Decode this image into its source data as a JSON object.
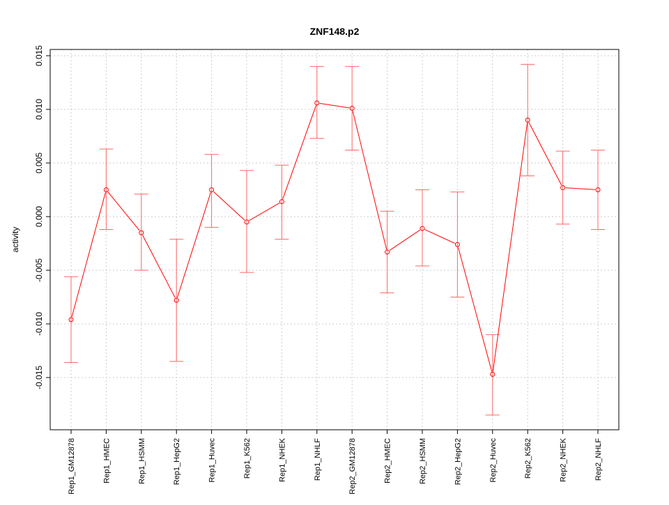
{
  "chart_data": {
    "type": "line",
    "title": "ZNF148.p2",
    "xlabel": "",
    "ylabel": "activity",
    "ylim": [
      -0.0199,
      0.0155
    ],
    "yticks": [
      -0.015,
      -0.01,
      -0.005,
      0.0,
      0.005,
      0.01,
      0.015
    ],
    "ytick_labels": [
      "-0.015",
      "-0.010",
      "-0.005",
      "0.000",
      "0.005",
      "0.010",
      "0.015"
    ],
    "grid": true,
    "legend": "none",
    "colors": {
      "series": "#ff0000",
      "errorbar": "#ff6666",
      "grid": "#cccccc",
      "axis": "#000000"
    },
    "categories": [
      "Rep1_GM12878",
      "Rep1_HMEC",
      "Rep1_HSMM",
      "Rep1_HepG2",
      "Rep1_Huvec",
      "Rep1_K562",
      "Rep1_NHEK",
      "Rep1_NHLF",
      "Rep2_GM12878",
      "Rep2_HMEC",
      "Rep2_HSMM",
      "Rep2_HepG2",
      "Rep2_Huvec",
      "Rep2_K562",
      "Rep2_NHEK",
      "Rep2_NHLF"
    ],
    "series": [
      {
        "name": "activity",
        "values": [
          -0.0096,
          0.0025,
          -0.0015,
          -0.0078,
          0.0025,
          -0.0005,
          0.0014,
          0.0106,
          0.0101,
          -0.0033,
          -0.0011,
          -0.0026,
          -0.0147,
          0.009,
          0.0027,
          0.0025
        ],
        "upper": [
          -0.0056,
          0.0063,
          0.0021,
          -0.0021,
          0.0058,
          0.0043,
          0.0048,
          0.014,
          0.014,
          0.0005,
          0.0025,
          0.0023,
          -0.011,
          0.0142,
          0.0061,
          0.0062
        ],
        "lower": [
          -0.0136,
          -0.0012,
          -0.005,
          -0.0135,
          -0.001,
          -0.0052,
          -0.0021,
          0.0073,
          0.0062,
          -0.0071,
          -0.0046,
          -0.0075,
          -0.0185,
          0.0038,
          -0.0007,
          -0.0012
        ]
      }
    ]
  }
}
